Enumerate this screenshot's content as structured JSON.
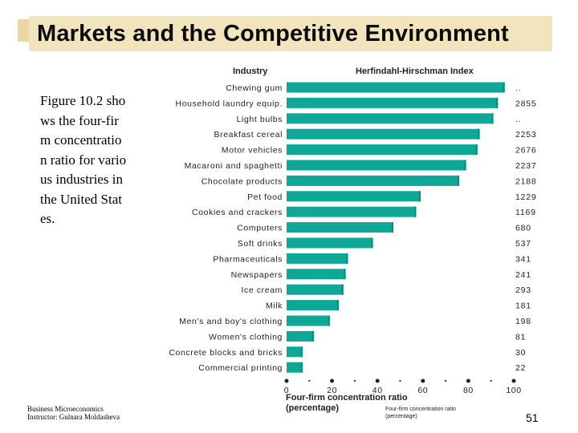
{
  "slide": {
    "title": "Markets and the Competitive Environment",
    "caption": "Figure 10.2 shows the four-firm concentration ratio for various industries in the United States.",
    "footer_line1": "Business Microeconomics",
    "footer_line2": "Instructor: Gulnara Moldasheva",
    "page_number": "51"
  },
  "colors": {
    "bar": "#0fa896",
    "bar_edge": "#0a8a7a",
    "title_band": "#f2e4bc",
    "title_accent": "#e9d7a6"
  },
  "chart_data": {
    "type": "bar",
    "orientation": "horizontal",
    "category_header": "Industry",
    "value_header": "Herfindahl-Hirschman Index",
    "categories": [
      "Chewing gum",
      "Household laundry equip.",
      "Light bulbs",
      "Breakfast cereal",
      "Motor vehicles",
      "Macaroni and spaghetti",
      "Chocolate products",
      "Pet food",
      "Cookies and crackers",
      "Computers",
      "Soft drinks",
      "Pharmaceuticals",
      "Newspapers",
      "Ice cream",
      "Milk",
      "Men's and boy's clothing",
      "Women's clothing",
      "Concrete blocks and bricks",
      "Commercial printing"
    ],
    "values": [
      96,
      93,
      91,
      85,
      84,
      79,
      76,
      59,
      57,
      47,
      38,
      27,
      26,
      25,
      23,
      19,
      12,
      7,
      7
    ],
    "hhi": [
      "..",
      "2855",
      "..",
      "2253",
      "2676",
      "2237",
      "2188",
      "1229",
      "1169",
      "680",
      "537",
      "341",
      "241",
      "293",
      "181",
      "198",
      "81",
      "30",
      "22"
    ],
    "xticks": [
      0,
      20,
      40,
      60,
      80,
      100
    ],
    "xlim": [
      0,
      100
    ],
    "xlabel": "Four-firm concentration ratio",
    "xlabel_units": "(percentage)",
    "xlabel_small": "Four-firm concentration ratio",
    "xlabel_small_units": "(percentage)"
  }
}
